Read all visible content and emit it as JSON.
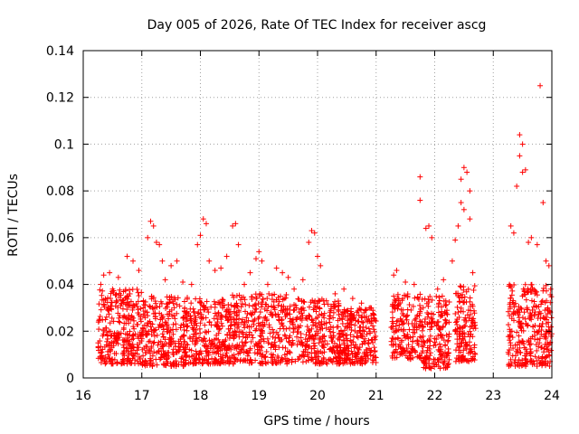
{
  "chart_data": {
    "type": "scatter",
    "title": "Day 005 of 2026, Rate Of TEC Index for receiver ascg",
    "xlabel": "GPS time / hours",
    "ylabel": "ROTI / TECUs",
    "xlim": [
      16,
      24
    ],
    "ylim": [
      0,
      0.14
    ],
    "x_ticks": [
      16,
      17,
      18,
      19,
      20,
      21,
      22,
      23,
      24
    ],
    "x_tick_labels": [
      "16",
      "17",
      "18",
      "19",
      "20",
      "21",
      "22",
      "23",
      "24"
    ],
    "y_ticks": [
      0,
      0.02,
      0.04,
      0.06,
      0.08,
      0.1,
      0.12,
      0.14
    ],
    "y_tick_labels": [
      "0",
      "0.02",
      "0.04",
      "0.06",
      "0.08",
      "0.1",
      "0.12",
      "0.14"
    ],
    "grid": true,
    "marker": "+",
    "marker_color": "#ff0000",
    "series": [
      {
        "name": "ROTI",
        "points": [
          [
            16.3,
            0.04
          ],
          [
            16.35,
            0.044
          ],
          [
            16.45,
            0.045
          ],
          [
            16.5,
            0.038
          ],
          [
            16.6,
            0.043
          ],
          [
            16.75,
            0.052
          ],
          [
            16.85,
            0.05
          ],
          [
            16.95,
            0.046
          ],
          [
            17.1,
            0.06
          ],
          [
            17.15,
            0.067
          ],
          [
            17.2,
            0.065
          ],
          [
            17.25,
            0.058
          ],
          [
            17.3,
            0.057
          ],
          [
            17.35,
            0.05
          ],
          [
            17.4,
            0.042
          ],
          [
            17.5,
            0.048
          ],
          [
            17.6,
            0.05
          ],
          [
            17.7,
            0.041
          ],
          [
            17.85,
            0.04
          ],
          [
            17.95,
            0.057
          ],
          [
            18.0,
            0.061
          ],
          [
            18.05,
            0.068
          ],
          [
            18.1,
            0.066
          ],
          [
            18.15,
            0.05
          ],
          [
            18.25,
            0.046
          ],
          [
            18.35,
            0.047
          ],
          [
            18.45,
            0.052
          ],
          [
            18.55,
            0.065
          ],
          [
            18.6,
            0.066
          ],
          [
            18.65,
            0.057
          ],
          [
            18.75,
            0.04
          ],
          [
            18.85,
            0.045
          ],
          [
            18.95,
            0.051
          ],
          [
            19.0,
            0.054
          ],
          [
            19.05,
            0.05
          ],
          [
            19.15,
            0.04
          ],
          [
            19.3,
            0.047
          ],
          [
            19.4,
            0.045
          ],
          [
            19.5,
            0.043
          ],
          [
            19.6,
            0.038
          ],
          [
            19.75,
            0.042
          ],
          [
            19.85,
            0.058
          ],
          [
            19.9,
            0.063
          ],
          [
            19.95,
            0.062
          ],
          [
            20.0,
            0.052
          ],
          [
            20.05,
            0.048
          ],
          [
            20.15,
            0.033
          ],
          [
            20.3,
            0.036
          ],
          [
            20.45,
            0.038
          ],
          [
            20.6,
            0.034
          ],
          [
            20.75,
            0.032
          ],
          [
            20.9,
            0.03
          ],
          [
            21.3,
            0.044
          ],
          [
            21.35,
            0.046
          ],
          [
            21.5,
            0.041
          ],
          [
            21.65,
            0.04
          ],
          [
            21.75,
            0.076
          ],
          [
            21.75,
            0.086
          ],
          [
            21.85,
            0.064
          ],
          [
            21.9,
            0.065
          ],
          [
            21.95,
            0.06
          ],
          [
            22.05,
            0.038
          ],
          [
            22.15,
            0.042
          ],
          [
            22.3,
            0.05
          ],
          [
            22.35,
            0.059
          ],
          [
            22.4,
            0.065
          ],
          [
            22.45,
            0.075
          ],
          [
            22.45,
            0.085
          ],
          [
            22.5,
            0.09
          ],
          [
            22.5,
            0.072
          ],
          [
            22.55,
            0.088
          ],
          [
            22.6,
            0.068
          ],
          [
            22.6,
            0.08
          ],
          [
            22.65,
            0.045
          ],
          [
            23.3,
            0.065
          ],
          [
            23.35,
            0.062
          ],
          [
            23.4,
            0.082
          ],
          [
            23.45,
            0.095
          ],
          [
            23.45,
            0.104
          ],
          [
            23.5,
            0.1
          ],
          [
            23.5,
            0.088
          ],
          [
            23.55,
            0.089
          ],
          [
            23.6,
            0.058
          ],
          [
            23.65,
            0.06
          ],
          [
            23.75,
            0.057
          ],
          [
            23.8,
            0.125
          ],
          [
            23.85,
            0.075
          ],
          [
            23.9,
            0.05
          ],
          [
            23.95,
            0.048
          ]
        ],
        "clusters": [
          {
            "x_range": [
              16.25,
              17.0
            ],
            "y_range": [
              0.006,
              0.038
            ],
            "count": 300
          },
          {
            "x_range": [
              17.0,
              17.8
            ],
            "y_range": [
              0.005,
              0.036
            ],
            "count": 300
          },
          {
            "x_range": [
              17.8,
              18.5
            ],
            "y_range": [
              0.006,
              0.034
            ],
            "count": 260
          },
          {
            "x_range": [
              18.5,
              19.5
            ],
            "y_range": [
              0.006,
              0.036
            ],
            "count": 340
          },
          {
            "x_range": [
              19.5,
              20.4
            ],
            "y_range": [
              0.006,
              0.034
            ],
            "count": 300
          },
          {
            "x_range": [
              20.4,
              21.0
            ],
            "y_range": [
              0.006,
              0.03
            ],
            "count": 240
          },
          {
            "x_range": [
              21.25,
              21.8
            ],
            "y_range": [
              0.008,
              0.036
            ],
            "count": 180
          },
          {
            "x_range": [
              21.8,
              22.25
            ],
            "y_range": [
              0.004,
              0.035
            ],
            "count": 180
          },
          {
            "x_range": [
              22.35,
              22.7
            ],
            "y_range": [
              0.007,
              0.04
            ],
            "count": 150
          },
          {
            "x_range": [
              23.25,
              24.0
            ],
            "y_range": [
              0.005,
              0.04
            ],
            "count": 300
          }
        ]
      }
    ]
  }
}
